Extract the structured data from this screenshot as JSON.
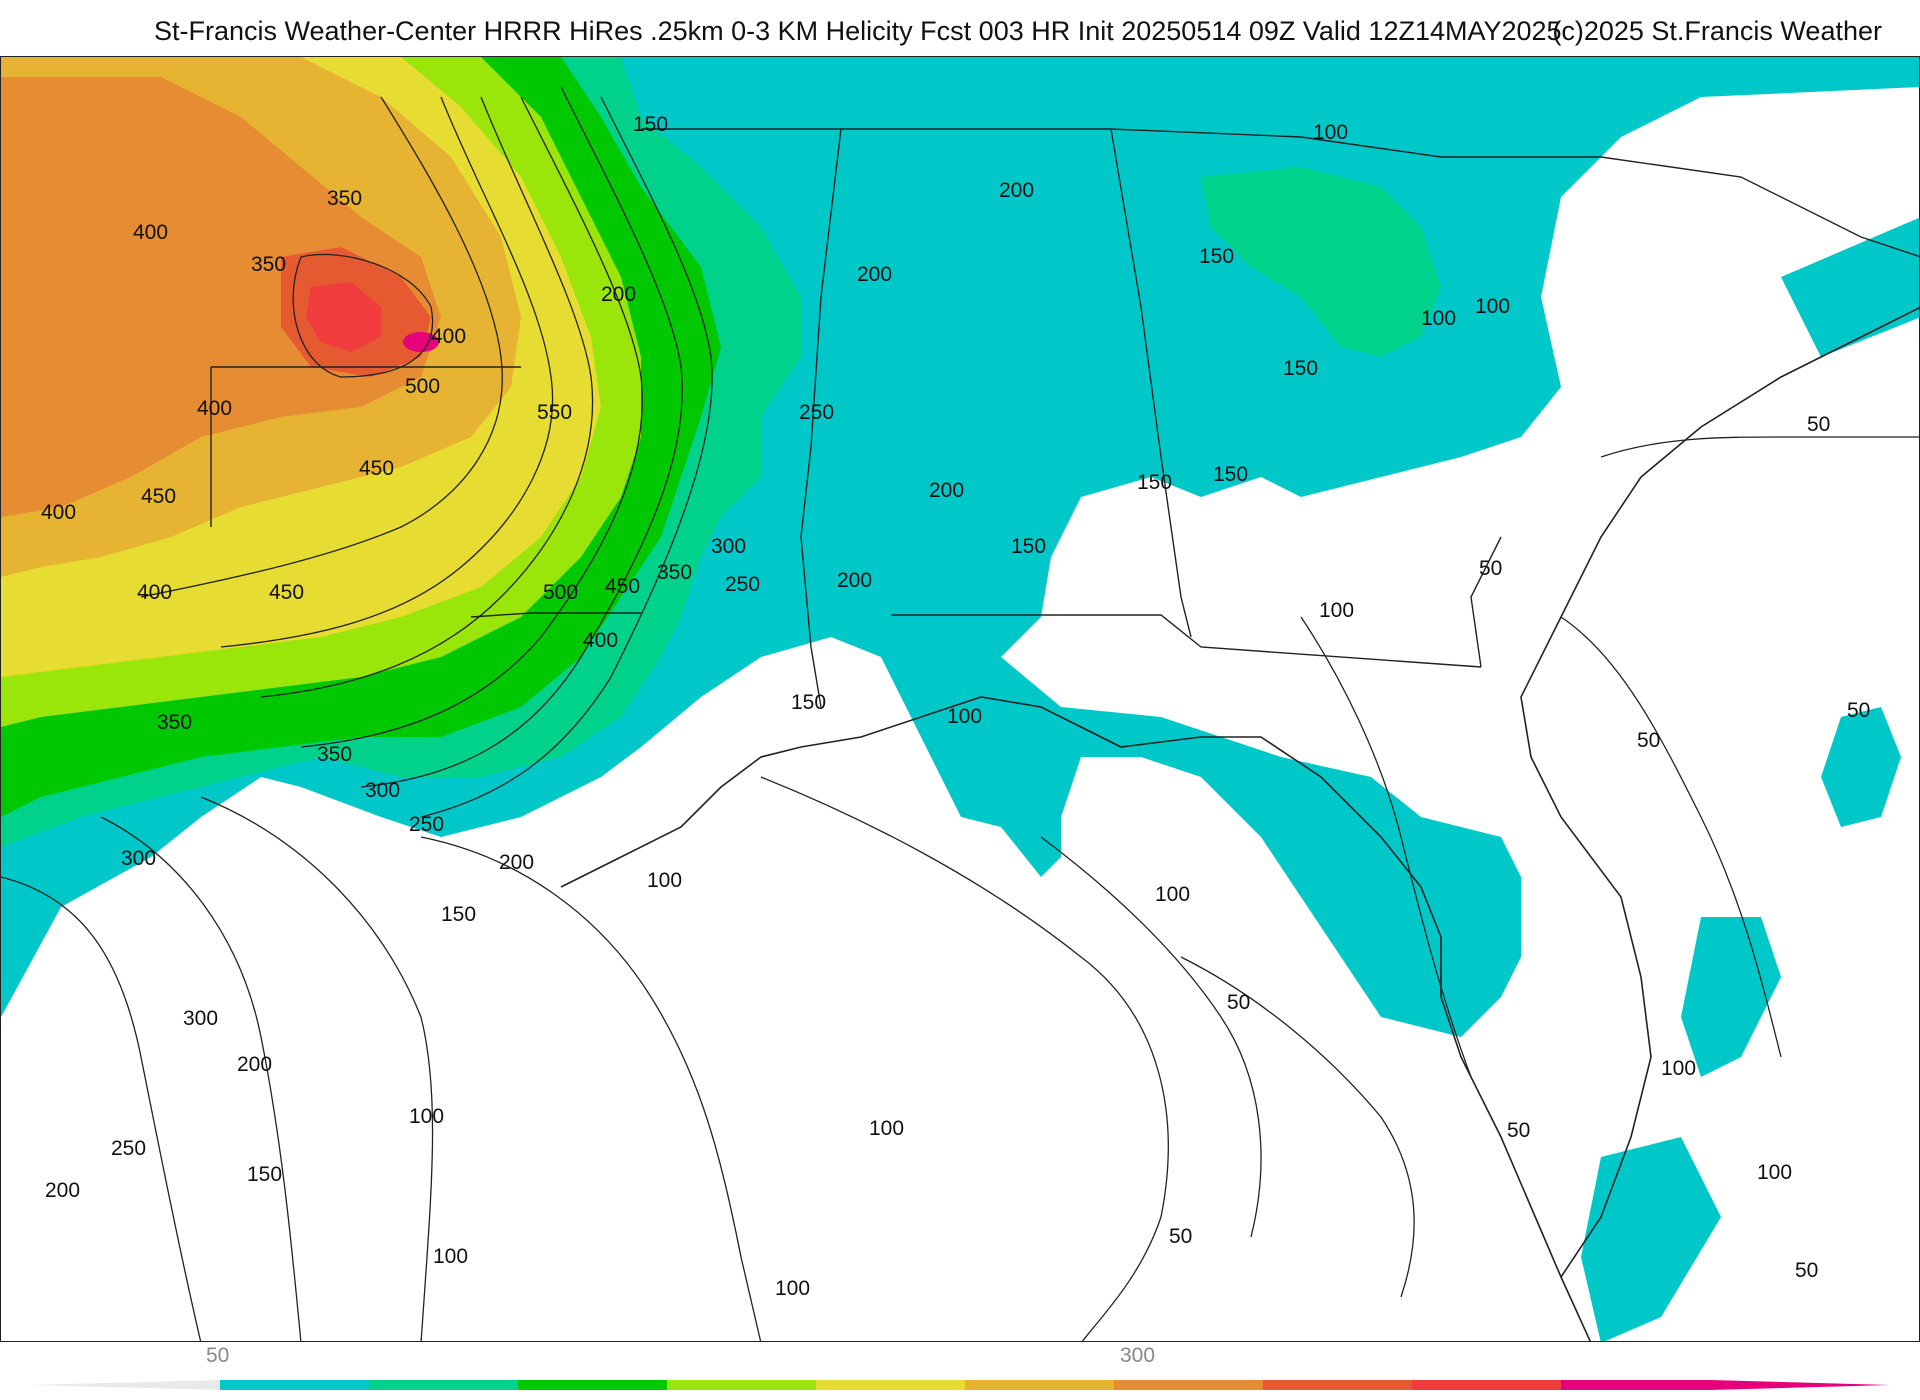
{
  "header": {
    "title": "St-Francis Weather-Center HRRR HiRes .25km 0-3 KM Helicity Fcst 003 HR Init 20250514 09Z  Valid 12Z14MAY2025",
    "copyright": "(c)2025 St.Francis Weather"
  },
  "map": {
    "field": "0-3 KM Helicity",
    "contour_labels": [
      "150",
      "100",
      "200",
      "200",
      "150",
      "100",
      "100",
      "150",
      "50",
      "350",
      "400",
      "350",
      "200",
      "250",
      "400",
      "500",
      "550",
      "400",
      "450",
      "450",
      "400",
      "200",
      "150",
      "150",
      "150",
      "300",
      "250",
      "500",
      "450",
      "350",
      "400",
      "200",
      "400",
      "450",
      "50",
      "100",
      "150",
      "100",
      "350",
      "350",
      "300",
      "250",
      "200",
      "100",
      "50",
      "50",
      "300",
      "150",
      "100",
      "300",
      "200",
      "250",
      "150",
      "200",
      "100",
      "100",
      "100",
      "50",
      "50",
      "100",
      "100",
      "50",
      "100",
      "50"
    ]
  },
  "colorbar": {
    "tick_labels": [
      "50",
      "300"
    ],
    "colors": [
      "#00c8c8",
      "#00d28c",
      "#00c800",
      "#9be60a",
      "#e6dc32",
      "#e6b432",
      "#e68c32",
      "#e65a32",
      "#f03c3c",
      "#e6007a"
    ]
  }
}
